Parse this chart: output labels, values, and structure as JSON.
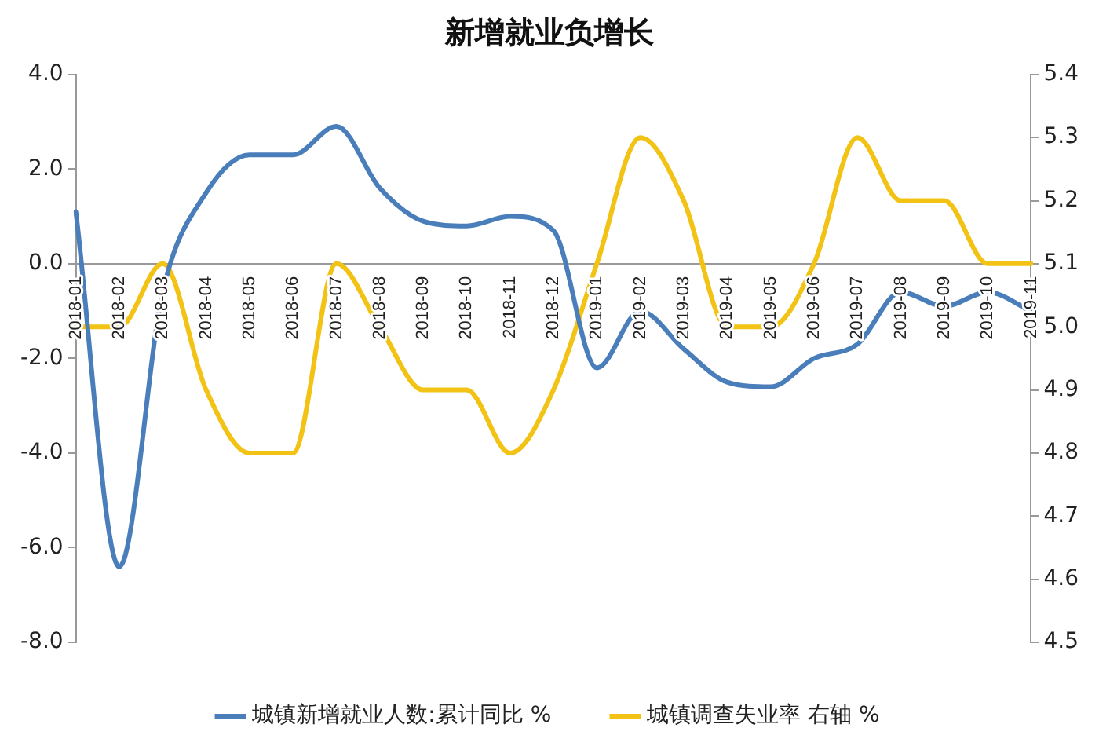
{
  "chart_data": {
    "type": "line",
    "title": "新增就业负增长",
    "categories": [
      "2018-01",
      "2018-02",
      "2018-03",
      "2018-04",
      "2018-05",
      "2018-06",
      "2018-07",
      "2018-08",
      "2018-09",
      "2018-10",
      "2018-11",
      "2018-12",
      "2019-01",
      "2019-02",
      "2019-03",
      "2019-04",
      "2019-05",
      "2019-06",
      "2019-07",
      "2019-08",
      "2019-09",
      "2019-10",
      "2019-11"
    ],
    "series": [
      {
        "name": "城镇新增就业人数:累计同比 %",
        "color": "#4a7ebb",
        "values": [
          1.1,
          -6.4,
          -0.6,
          1.5,
          2.3,
          2.3,
          2.9,
          1.6,
          0.9,
          0.8,
          1.0,
          0.7,
          -2.2,
          -1.0,
          -1.8,
          -2.5,
          -2.6,
          -2.0,
          -1.7,
          -0.6,
          -0.9,
          -0.6,
          -1.0
        ]
      },
      {
        "name": "城镇调查失业率 右轴 %",
        "color": "#f2c314",
        "axis": "y2",
        "values": [
          5.0,
          5.0,
          5.1,
          4.9,
          4.8,
          4.8,
          5.1,
          5.0,
          4.9,
          4.9,
          4.8,
          4.9,
          5.1,
          5.3,
          5.2,
          5.0,
          5.0,
          5.1,
          5.3,
          5.2,
          5.2,
          5.1,
          5.1
        ]
      }
    ],
    "ylim": [
      -8,
      4
    ],
    "yticks": [
      {
        "value": -8,
        "label": "-8.0"
      },
      {
        "value": -6,
        "label": "-6.0"
      },
      {
        "value": -4,
        "label": "-4.0"
      },
      {
        "value": -2,
        "label": "-2.0"
      },
      {
        "value": 0,
        "label": "0.0"
      },
      {
        "value": 2,
        "label": "2.0"
      },
      {
        "value": 4,
        "label": "4.0"
      }
    ],
    "y2lim": [
      4.5,
      5.4
    ],
    "y2ticks": [
      4.5,
      4.6,
      4.7,
      4.8,
      4.9,
      {
        "value": 5,
        "label": "5.0"
      },
      5.1,
      5.2,
      5.3,
      5.4
    ],
    "grid": false,
    "legend": "bottom",
    "marker": "none",
    "line_style": "solid"
  }
}
